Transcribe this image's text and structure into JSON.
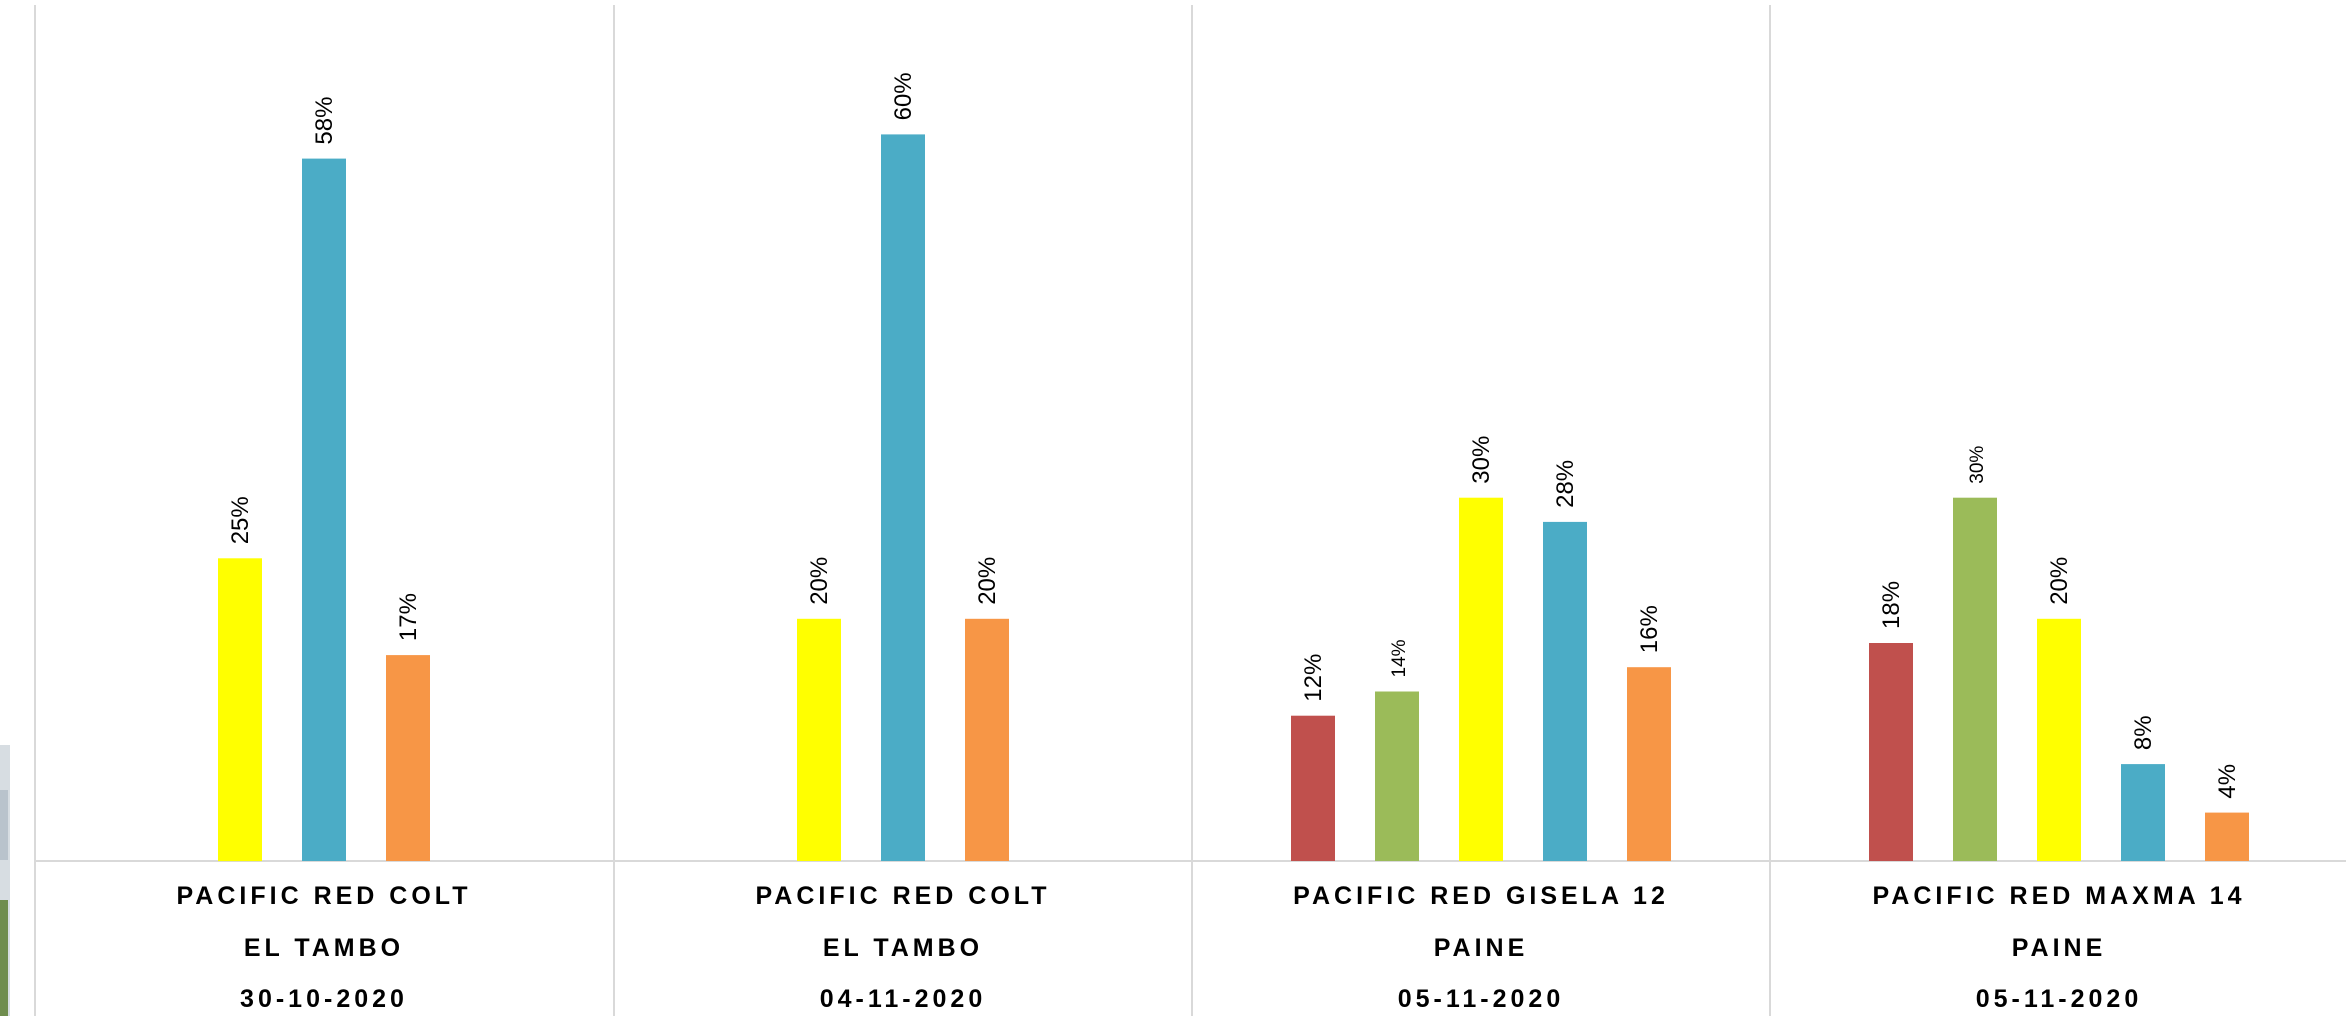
{
  "chart_data": {
    "type": "bar",
    "ylim": [
      0,
      70
    ],
    "series_colors": [
      "#C0504D",
      "#9BBB59",
      "#FFFF00",
      "#4BACC6",
      "#F79646"
    ],
    "groups": [
      {
        "label_lines": [
          "PACIFIC RED COLT",
          "EL TAMBO",
          "30-10-2020"
        ],
        "bars": [
          {
            "color": "#FFFF00",
            "value": 25,
            "label": "25%"
          },
          {
            "color": "#4BACC6",
            "value": 58,
            "label": "58%"
          },
          {
            "color": "#F79646",
            "value": 17,
            "label": "17%"
          }
        ]
      },
      {
        "label_lines": [
          "PACIFIC RED COLT",
          "EL TAMBO",
          "04-11-2020"
        ],
        "bars": [
          {
            "color": "#FFFF00",
            "value": 20,
            "label": "20%"
          },
          {
            "color": "#4BACC6",
            "value": 60,
            "label": "60%"
          },
          {
            "color": "#F79646",
            "value": 20,
            "label": "20%"
          }
        ]
      },
      {
        "label_lines": [
          "PACIFIC RED GISELA 12",
          "PAINE",
          "05-11-2020"
        ],
        "bars": [
          {
            "color": "#C0504D",
            "value": 12,
            "label": "12%"
          },
          {
            "color": "#9BBB59",
            "value": 14,
            "label": "14%"
          },
          {
            "color": "#FFFF00",
            "value": 30,
            "label": "30%"
          },
          {
            "color": "#4BACC6",
            "value": 28,
            "label": "28%"
          },
          {
            "color": "#F79646",
            "value": 16,
            "label": "16%"
          }
        ]
      },
      {
        "label_lines": [
          "PACIFIC RED MAXMA 14",
          "PAINE",
          "05-11-2020"
        ],
        "bars": [
          {
            "color": "#C0504D",
            "value": 18,
            "label": "18%"
          },
          {
            "color": "#9BBB59",
            "value": 30,
            "label": "30%"
          },
          {
            "color": "#FFFF00",
            "value": 20,
            "label": "20%"
          },
          {
            "color": "#4BACC6",
            "value": 8,
            "label": "8%"
          },
          {
            "color": "#F79646",
            "value": 4,
            "label": "4%"
          }
        ]
      }
    ]
  }
}
